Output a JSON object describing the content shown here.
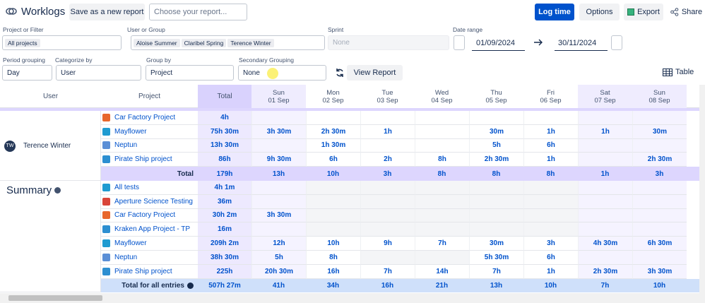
{
  "header": {
    "title": "Worklogs",
    "save_button": "Save as a new report",
    "report_select": "Choose your report...",
    "log_time": "Log time",
    "options": "Options",
    "export": "Export",
    "share": "Share"
  },
  "filters": {
    "project_label": "Project or Filter",
    "project_chip": "All projects",
    "user_label": "User or Group",
    "user_chips": [
      "Aloise Summer",
      "Claribel Spring",
      "Terence Winter"
    ],
    "sprint_label": "Sprint",
    "sprint_value": "None",
    "date_label": "Date range",
    "date_from": "01/09/2024",
    "date_to": "30/11/2024",
    "period_label": "Period grouping",
    "period_value": "Day",
    "categorize_label": "Categorize by",
    "categorize_value": "User",
    "group_label": "Group by",
    "group_value": "Project",
    "secondary_label": "Secondary Grouping",
    "secondary_value": "None",
    "view_report": "View Report",
    "view_mode": "Table"
  },
  "table": {
    "columns": {
      "user": "User",
      "project": "Project",
      "total": "Total",
      "days": [
        {
          "day": "Sun",
          "date": "01 Sep"
        },
        {
          "day": "Mon",
          "date": "02 Sep"
        },
        {
          "day": "Tue",
          "date": "03 Sep"
        },
        {
          "day": "Wed",
          "date": "04 Sep"
        },
        {
          "day": "Thu",
          "date": "05 Sep"
        },
        {
          "day": "Fri",
          "date": "06 Sep"
        },
        {
          "day": "Sat",
          "date": "07 Sep"
        },
        {
          "day": "Sun",
          "date": "08 Sep"
        }
      ]
    },
    "groups": [
      {
        "user": "Terence Winter",
        "initials": "TW",
        "rows": [
          {
            "project": "Car Factory Project",
            "icon": "#e8672c",
            "total": "4h",
            "days": [
              null,
              null,
              null,
              null,
              null,
              null,
              null,
              null
            ]
          },
          {
            "project": "Mayflower",
            "icon": "#1f9bd1",
            "total": "75h 30m",
            "days": [
              "3h 30m",
              "2h 30m",
              "1h",
              null,
              "30m",
              "1h",
              "1h",
              "30m"
            ]
          },
          {
            "project": "Neptun",
            "icon": "#5b8fd6",
            "total": "13h 30m",
            "days": [
              null,
              "1h 30m",
              null,
              null,
              "5h",
              "6h",
              null,
              null
            ]
          },
          {
            "project": "Pirate Ship project",
            "icon": "#2d8fd1",
            "total": "86h",
            "days": [
              "9h 30m",
              "6h",
              "2h",
              "8h",
              "2h 30m",
              "1h",
              null,
              "2h 30m"
            ]
          }
        ],
        "total_label": "Total",
        "total": "179h",
        "totals": [
          "13h",
          "10h",
          "3h",
          "8h",
          "8h",
          "8h",
          "1h",
          "3h"
        ]
      },
      {
        "user": "Summary",
        "rows": [
          {
            "project": "All tests",
            "icon": "#1f9bd1",
            "total": "4h 1m",
            "days": [
              null,
              null,
              null,
              null,
              null,
              null,
              null,
              null
            ]
          },
          {
            "project": "Aperture Science Testing",
            "icon": "#d9453a",
            "total": "36m",
            "days": [
              null,
              null,
              null,
              null,
              null,
              null,
              null,
              null
            ]
          },
          {
            "project": "Car Factory Project",
            "icon": "#e8672c",
            "total": "30h 2m",
            "days": [
              "3h 30m",
              null,
              null,
              null,
              null,
              null,
              null,
              null
            ]
          },
          {
            "project": "Kraken App Project - TP",
            "icon": "#2d8fd1",
            "total": "16m",
            "days": [
              null,
              null,
              null,
              null,
              null,
              null,
              null,
              null
            ]
          },
          {
            "project": "Mayflower",
            "icon": "#1f9bd1",
            "total": "209h 2m",
            "days": [
              "12h",
              "10h",
              "9h",
              "7h",
              "30m",
              "3h",
              "4h 30m",
              "6h 30m"
            ]
          },
          {
            "project": "Neptun",
            "icon": "#5b8fd6",
            "total": "38h 30m",
            "days": [
              "5h",
              "8h",
              null,
              null,
              "5h 30m",
              "6h",
              null,
              null
            ]
          },
          {
            "project": "Pirate Ship project",
            "icon": "#2d8fd1",
            "total": "225h",
            "days": [
              "20h 30m",
              "16h",
              "7h",
              "14h",
              "7h",
              "1h",
              "2h 30m",
              "3h 30m"
            ]
          }
        ],
        "total_label": "Total for all entries",
        "total": "507h 27m",
        "totals": [
          "41h",
          "34h",
          "16h",
          "21h",
          "13h",
          "10h",
          "7h",
          "10h"
        ]
      }
    ]
  }
}
